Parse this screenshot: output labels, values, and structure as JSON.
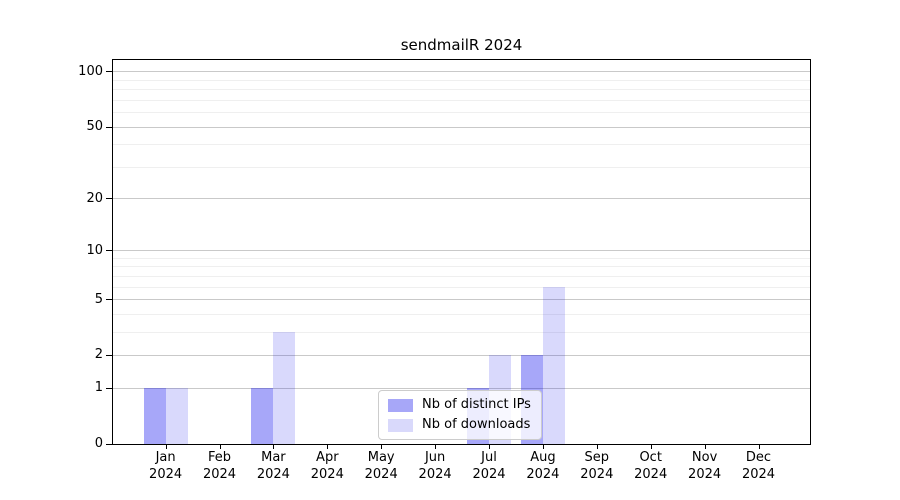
{
  "title": "sendmailR 2024",
  "chart_data": {
    "type": "bar",
    "title": "sendmailR 2024",
    "x_categories": [
      "Jan 2024",
      "Feb 2024",
      "Mar 2024",
      "Apr 2024",
      "May 2024",
      "Jun 2024",
      "Jul 2024",
      "Aug 2024",
      "Sep 2024",
      "Oct 2024",
      "Nov 2024",
      "Dec 2024"
    ],
    "series": [
      {
        "name": "Nb of distinct IPs",
        "values": [
          1,
          0,
          1,
          0,
          0,
          0,
          1,
          2,
          0,
          0,
          0,
          0
        ],
        "fill": "rgba(0,0,238,0.345)",
        "swatch": "#a7a7f8"
      },
      {
        "name": "Nb of downloads",
        "values": [
          1,
          0,
          3,
          0,
          0,
          0,
          2,
          6,
          0,
          0,
          0,
          0
        ],
        "fill": "rgba(0,0,238,0.15)",
        "swatch": "#d9d9fb"
      }
    ],
    "yscale": "log1p",
    "ylim": [
      0,
      115
    ],
    "y_tick_values": [
      0,
      1,
      2,
      5,
      10,
      20,
      50,
      100
    ],
    "y_tick_labels": [
      "0",
      "1",
      "2",
      "5",
      "10",
      "20",
      "50",
      "100"
    ],
    "y_minor_gridlines": [
      3,
      4,
      6,
      7,
      8,
      9,
      30,
      40,
      60,
      70,
      80,
      90
    ],
    "grid": "horizontal, major and minor",
    "legend_position": "lower center, inside plot"
  },
  "legend": {
    "entries": [
      {
        "label": "Nb of distinct IPs"
      },
      {
        "label": "Nb of downloads"
      }
    ]
  },
  "colors": {
    "bar_distinct_ips": "#a7a7f8",
    "bar_downloads": "#d9d9fb",
    "grid_major": "#c9c9c9",
    "grid_minor": "#efefef",
    "spine": "#000000",
    "background": "#ffffff"
  }
}
